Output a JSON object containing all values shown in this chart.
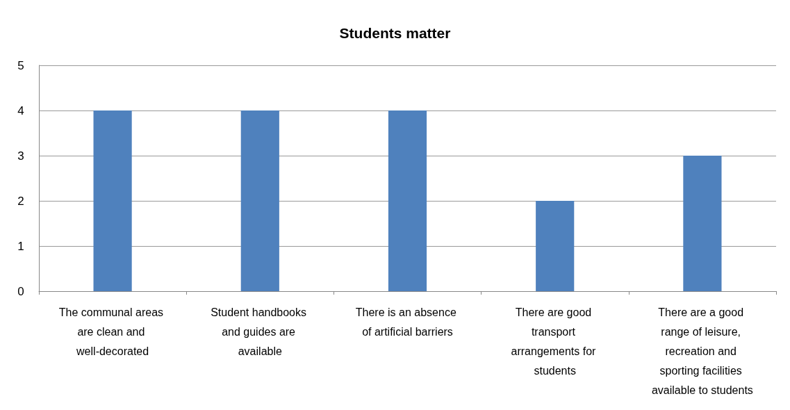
{
  "chart_data": {
    "type": "bar",
    "title": "Students matter",
    "categories": [
      "The communal areas are clean and well-decorated",
      "Student handbooks and guides are available",
      "There is an absence of artificial barriers",
      "There are good transport arrangements for students",
      "There are a good range of leisure, recreation and sporting facilities available to students"
    ],
    "values": [
      4,
      4,
      4,
      2,
      3
    ],
    "color": "#4f81bd",
    "ylim": [
      0,
      5
    ],
    "yticks": [
      0,
      1,
      2,
      3,
      4,
      5
    ],
    "grid": "y"
  }
}
